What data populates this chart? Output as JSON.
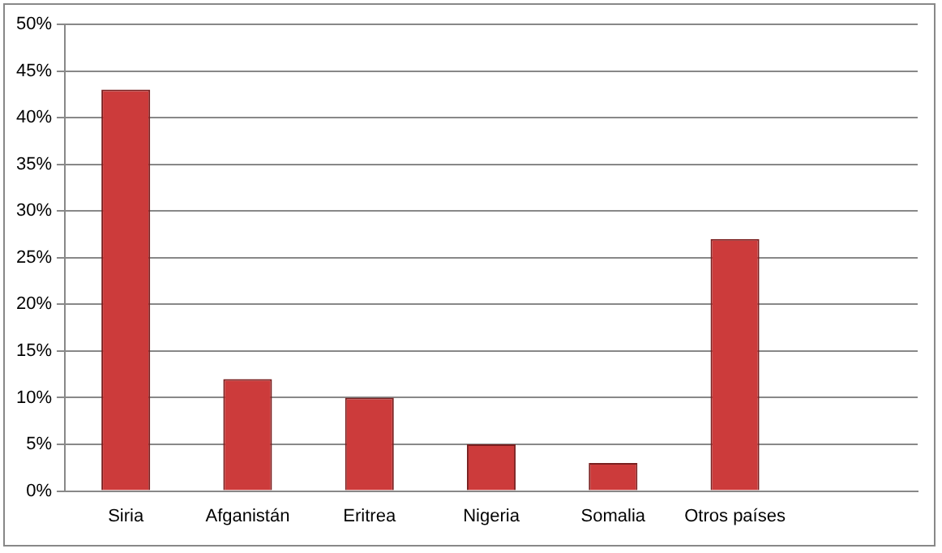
{
  "chart_data": {
    "type": "bar",
    "categories": [
      "Siria",
      "Afganistán",
      "Eritrea",
      "Nigeria",
      "Somalia",
      "Otros países",
      null
    ],
    "values": [
      43,
      12,
      10,
      5,
      3,
      27,
      null
    ],
    "color": "#cc3b3b",
    "ylim": [
      0,
      50
    ],
    "yticks": [
      {
        "value": 0,
        "label": "0%"
      },
      {
        "value": 5,
        "label": "5%"
      },
      {
        "value": 10,
        "label": "10%"
      },
      {
        "value": 15,
        "label": "15%"
      },
      {
        "value": 20,
        "label": "20%"
      },
      {
        "value": 25,
        "label": "25%"
      },
      {
        "value": 30,
        "label": "30%"
      },
      {
        "value": 35,
        "label": "35%"
      },
      {
        "value": 40,
        "label": "40%"
      },
      {
        "value": 45,
        "label": "45%"
      },
      {
        "value": 50,
        "label": "50%"
      }
    ],
    "grid": "y",
    "legend": false
  }
}
